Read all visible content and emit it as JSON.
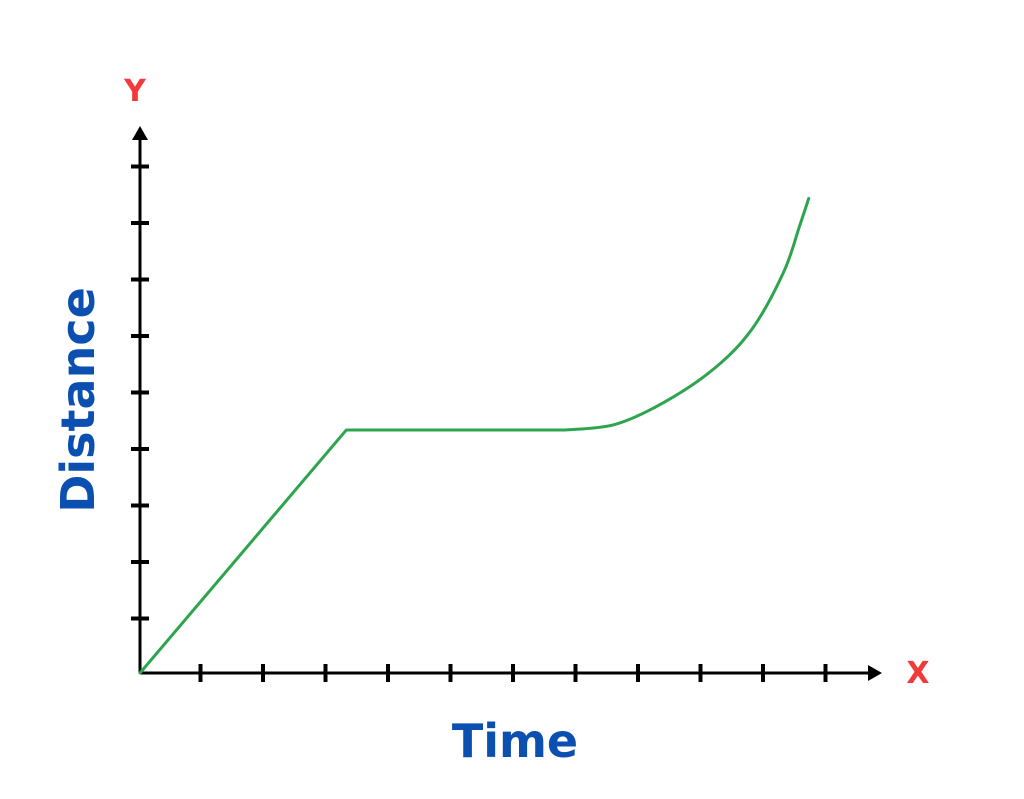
{
  "chart_data": {
    "type": "line",
    "xlabel": "Time",
    "ylabel": "Distance",
    "x_axis_letter": "X",
    "y_axis_letter": "Y",
    "x_ticks": 11,
    "y_ticks": 9,
    "xlim": [
      0,
      11.7
    ],
    "ylim": [
      0,
      9.6
    ],
    "grid": false,
    "series": [
      {
        "points": [
          [
            0,
            0
          ],
          [
            3.3,
            4.3
          ],
          [
            6.8,
            4.3
          ],
          [
            7.6,
            4.4
          ],
          [
            8.4,
            4.8
          ],
          [
            9.2,
            5.4
          ],
          [
            9.8,
            6.1
          ],
          [
            10.3,
            7.1
          ],
          [
            10.55,
            7.9
          ],
          [
            10.7,
            8.4
          ]
        ]
      }
    ]
  },
  "colors": {
    "axis": "#000000",
    "line": "#2ea44f",
    "axis_letter": "#f23a3a",
    "axis_title": "#0b4fb0"
  }
}
